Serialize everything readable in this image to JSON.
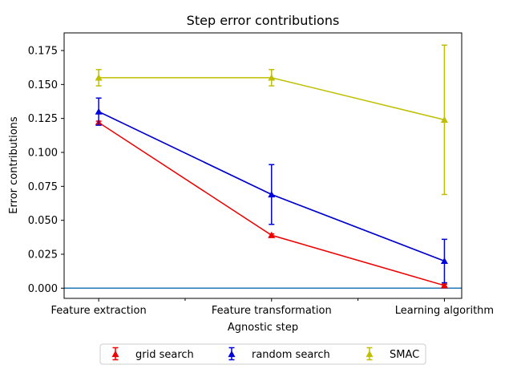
{
  "chart_data": {
    "type": "line",
    "title": "Step error contributions",
    "xlabel": "Agnostic step",
    "ylabel": "Error contributions",
    "categories": [
      "Feature extraction",
      "Feature transformation",
      "Learning algorithm"
    ],
    "ylim": [
      -0.0075,
      0.188
    ],
    "yticks": [
      0.0,
      0.025,
      0.05,
      0.075,
      0.1,
      0.125,
      0.15,
      0.175
    ],
    "ytick_labels": [
      "0.000",
      "0.025",
      "0.050",
      "0.075",
      "0.100",
      "0.125",
      "0.150",
      "0.175"
    ],
    "minor_xticks": [
      0.5,
      1.5
    ],
    "reference_line": {
      "y": 0.0,
      "color": "#1f77b4"
    },
    "black_line": {
      "values": [
        0.13,
        0.069,
        0.02
      ],
      "color": "#000000"
    },
    "series": [
      {
        "name": "grid search",
        "color": "#ee0000",
        "values": [
          0.122,
          0.039,
          0.002
        ],
        "errors": [
          0.001,
          0.001,
          0.001
        ]
      },
      {
        "name": "random search",
        "color": "#0000dd",
        "values": [
          0.13,
          0.069,
          0.02
        ],
        "errors": [
          0.01,
          0.022,
          0.016
        ]
      },
      {
        "name": "SMAC",
        "color": "#bfbf00",
        "values": [
          0.155,
          0.155,
          0.124
        ],
        "errors": [
          0.006,
          0.006,
          0.055
        ]
      }
    ],
    "legend": {
      "placement": "bottom-center",
      "columns": 3
    },
    "grid": false
  }
}
